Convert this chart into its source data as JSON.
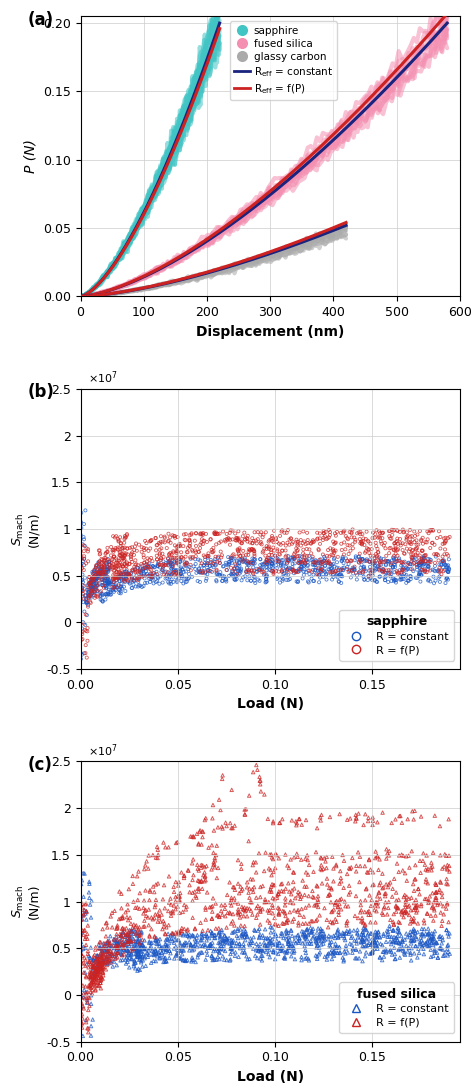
{
  "fig_width": 4.74,
  "fig_height": 10.85,
  "panel_a": {
    "label": "(a)",
    "xlabel": "Displacement (nm)",
    "ylabel": "P (N)",
    "xlim": [
      0,
      600
    ],
    "ylim": [
      0,
      0.205
    ],
    "yticks": [
      0,
      0.05,
      0.1,
      0.15,
      0.2
    ],
    "xticks": [
      0,
      100,
      200,
      300,
      400,
      500,
      600
    ],
    "sapphire_color": "#40C4C4",
    "fused_silica_color": "#F48FB1",
    "glassy_carbon_color": "#AAAAAA",
    "blue_line_color": "#1A237E",
    "red_line_color": "#CC2222"
  },
  "panel_b": {
    "label": "(b)",
    "xlabel": "Load (N)",
    "ylabel": "S_mach (N/m)",
    "xlim": [
      0,
      0.195
    ],
    "ylim": [
      -5000000.0,
      25000000.0
    ],
    "yticks": [
      -5000000.0,
      0,
      5000000.0,
      10000000.0,
      15000000.0,
      20000000.0,
      25000000.0
    ],
    "ytick_labels": [
      "-0.5",
      "0",
      "0.5",
      "1",
      "1.5",
      "2",
      "2.5"
    ],
    "xticks": [
      0,
      0.05,
      0.1,
      0.15
    ],
    "blue_color": "#1A56C4",
    "red_color": "#CC2222",
    "legend_title": "sapphire",
    "legend_labels": [
      "R = constant",
      "R = f(P)"
    ]
  },
  "panel_c": {
    "label": "(c)",
    "xlabel": "Load (N)",
    "ylabel": "S_mach (N/m)",
    "xlim": [
      0,
      0.195
    ],
    "ylim": [
      -5000000.0,
      25000000.0
    ],
    "yticks": [
      -5000000.0,
      0,
      5000000.0,
      10000000.0,
      15000000.0,
      20000000.0,
      25000000.0
    ],
    "ytick_labels": [
      "-0.5",
      "0",
      "0.5",
      "1",
      "1.5",
      "2",
      "2.5"
    ],
    "xticks": [
      0,
      0.05,
      0.1,
      0.15
    ],
    "blue_color": "#1A56C4",
    "red_color": "#CC2222",
    "legend_title": "fused silica",
    "legend_labels": [
      "R = constant",
      "R = f(P)"
    ]
  }
}
